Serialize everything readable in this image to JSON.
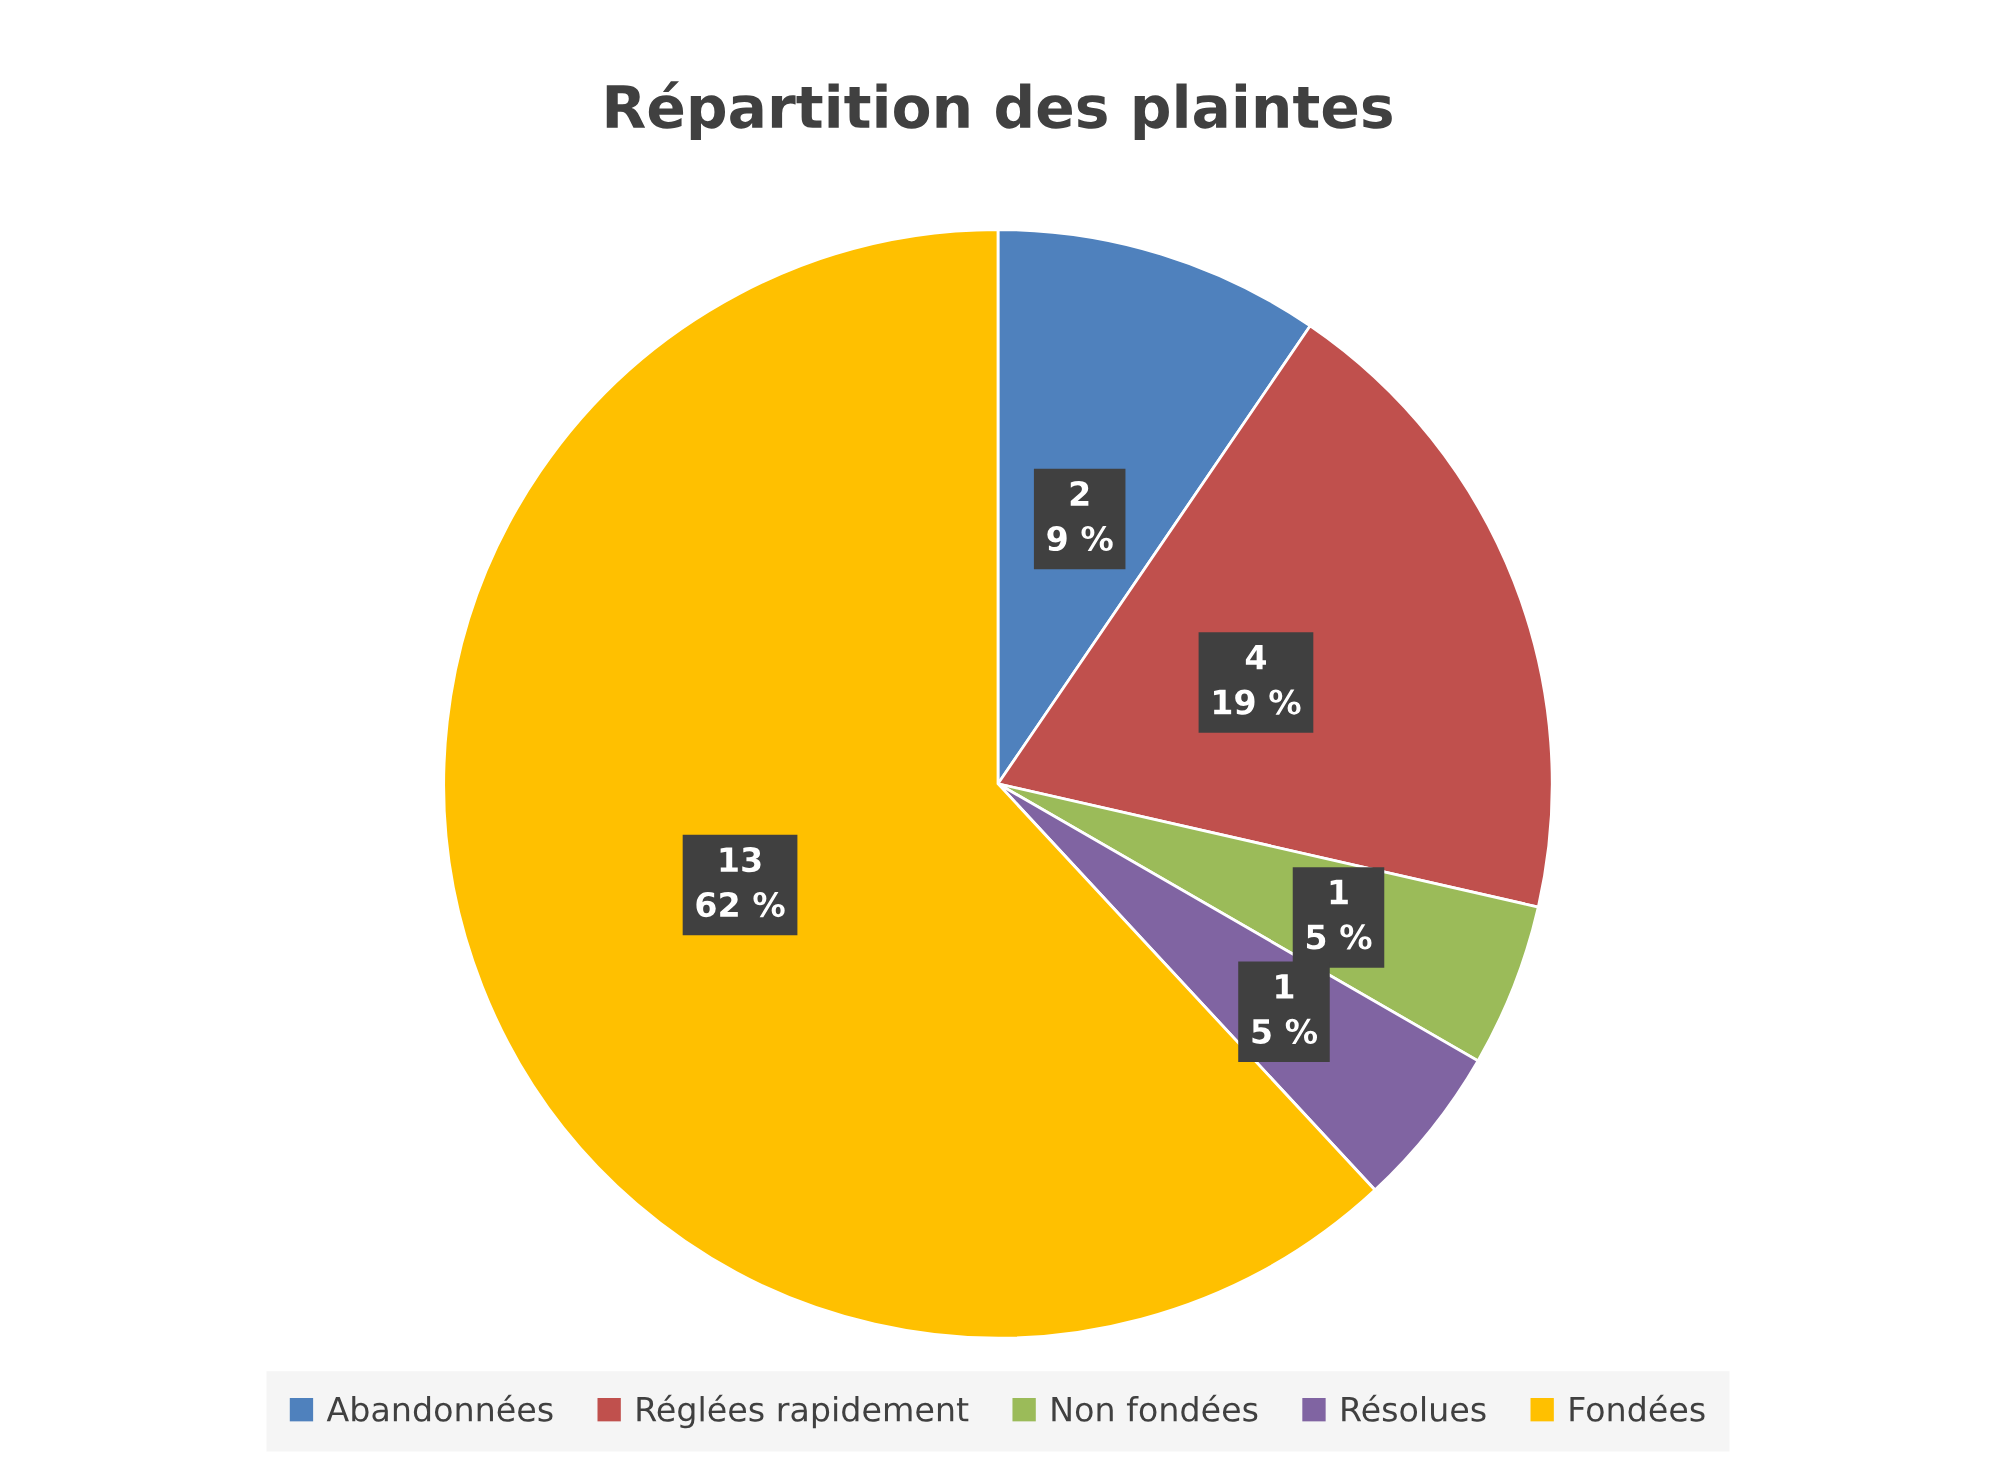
{
  "chart_data": {
    "type": "pie",
    "title": "Répartition des plaintes",
    "categories": [
      "Abandonnées",
      "Réglées rapidement",
      "Non fondées",
      "Résolues",
      "Fondées"
    ],
    "values": [
      2,
      4,
      1,
      1,
      13
    ],
    "colors": [
      "#4f81bd",
      "#c0504d",
      "#9bbb59",
      "#8064a2",
      "#ffc000"
    ],
    "value_labels": [
      "2\n9 %",
      "4\n19 %",
      "1\n5 %",
      "1\n5 %",
      "13\n62 %"
    ],
    "legend": "bottom"
  }
}
